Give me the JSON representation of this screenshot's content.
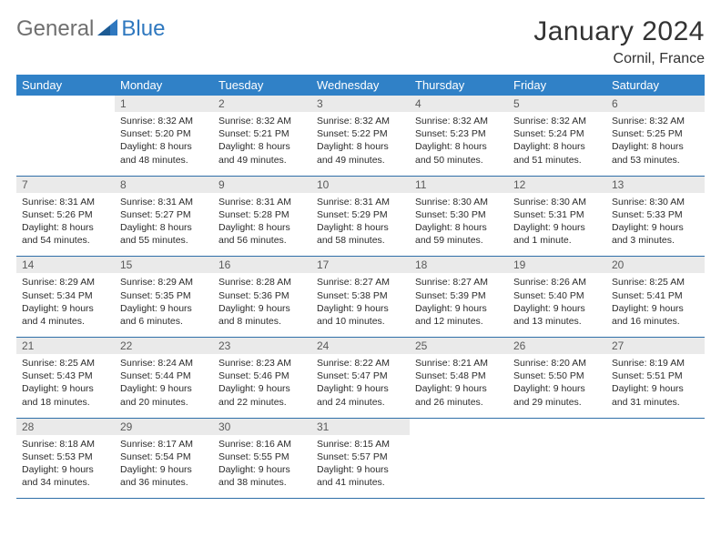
{
  "logo": {
    "general": "General",
    "blue": "Blue"
  },
  "header": {
    "month": "January 2024",
    "location": "Cornil, France"
  },
  "colors": {
    "header_bg": "#3081c7",
    "header_text": "#ffffff",
    "daynum_bg": "#eaeaea",
    "daynum_text": "#5a5a5a",
    "rule": "#2f6fa8",
    "body_text": "#2b2b2b",
    "logo_gray": "#6f6f6f",
    "logo_blue": "#2f78bf"
  },
  "weekdays": [
    "Sunday",
    "Monday",
    "Tuesday",
    "Wednesday",
    "Thursday",
    "Friday",
    "Saturday"
  ],
  "weeks": [
    {
      "nums": [
        "",
        "1",
        "2",
        "3",
        "4",
        "5",
        "6"
      ],
      "cells": [
        {
          "empty": true
        },
        {
          "sunrise": "Sunrise: 8:32 AM",
          "sunset": "Sunset: 5:20 PM",
          "day1": "Daylight: 8 hours",
          "day2": "and 48 minutes."
        },
        {
          "sunrise": "Sunrise: 8:32 AM",
          "sunset": "Sunset: 5:21 PM",
          "day1": "Daylight: 8 hours",
          "day2": "and 49 minutes."
        },
        {
          "sunrise": "Sunrise: 8:32 AM",
          "sunset": "Sunset: 5:22 PM",
          "day1": "Daylight: 8 hours",
          "day2": "and 49 minutes."
        },
        {
          "sunrise": "Sunrise: 8:32 AM",
          "sunset": "Sunset: 5:23 PM",
          "day1": "Daylight: 8 hours",
          "day2": "and 50 minutes."
        },
        {
          "sunrise": "Sunrise: 8:32 AM",
          "sunset": "Sunset: 5:24 PM",
          "day1": "Daylight: 8 hours",
          "day2": "and 51 minutes."
        },
        {
          "sunrise": "Sunrise: 8:32 AM",
          "sunset": "Sunset: 5:25 PM",
          "day1": "Daylight: 8 hours",
          "day2": "and 53 minutes."
        }
      ]
    },
    {
      "nums": [
        "7",
        "8",
        "9",
        "10",
        "11",
        "12",
        "13"
      ],
      "cells": [
        {
          "sunrise": "Sunrise: 8:31 AM",
          "sunset": "Sunset: 5:26 PM",
          "day1": "Daylight: 8 hours",
          "day2": "and 54 minutes."
        },
        {
          "sunrise": "Sunrise: 8:31 AM",
          "sunset": "Sunset: 5:27 PM",
          "day1": "Daylight: 8 hours",
          "day2": "and 55 minutes."
        },
        {
          "sunrise": "Sunrise: 8:31 AM",
          "sunset": "Sunset: 5:28 PM",
          "day1": "Daylight: 8 hours",
          "day2": "and 56 minutes."
        },
        {
          "sunrise": "Sunrise: 8:31 AM",
          "sunset": "Sunset: 5:29 PM",
          "day1": "Daylight: 8 hours",
          "day2": "and 58 minutes."
        },
        {
          "sunrise": "Sunrise: 8:30 AM",
          "sunset": "Sunset: 5:30 PM",
          "day1": "Daylight: 8 hours",
          "day2": "and 59 minutes."
        },
        {
          "sunrise": "Sunrise: 8:30 AM",
          "sunset": "Sunset: 5:31 PM",
          "day1": "Daylight: 9 hours",
          "day2": "and 1 minute."
        },
        {
          "sunrise": "Sunrise: 8:30 AM",
          "sunset": "Sunset: 5:33 PM",
          "day1": "Daylight: 9 hours",
          "day2": "and 3 minutes."
        }
      ]
    },
    {
      "nums": [
        "14",
        "15",
        "16",
        "17",
        "18",
        "19",
        "20"
      ],
      "cells": [
        {
          "sunrise": "Sunrise: 8:29 AM",
          "sunset": "Sunset: 5:34 PM",
          "day1": "Daylight: 9 hours",
          "day2": "and 4 minutes."
        },
        {
          "sunrise": "Sunrise: 8:29 AM",
          "sunset": "Sunset: 5:35 PM",
          "day1": "Daylight: 9 hours",
          "day2": "and 6 minutes."
        },
        {
          "sunrise": "Sunrise: 8:28 AM",
          "sunset": "Sunset: 5:36 PM",
          "day1": "Daylight: 9 hours",
          "day2": "and 8 minutes."
        },
        {
          "sunrise": "Sunrise: 8:27 AM",
          "sunset": "Sunset: 5:38 PM",
          "day1": "Daylight: 9 hours",
          "day2": "and 10 minutes."
        },
        {
          "sunrise": "Sunrise: 8:27 AM",
          "sunset": "Sunset: 5:39 PM",
          "day1": "Daylight: 9 hours",
          "day2": "and 12 minutes."
        },
        {
          "sunrise": "Sunrise: 8:26 AM",
          "sunset": "Sunset: 5:40 PM",
          "day1": "Daylight: 9 hours",
          "day2": "and 13 minutes."
        },
        {
          "sunrise": "Sunrise: 8:25 AM",
          "sunset": "Sunset: 5:41 PM",
          "day1": "Daylight: 9 hours",
          "day2": "and 16 minutes."
        }
      ]
    },
    {
      "nums": [
        "21",
        "22",
        "23",
        "24",
        "25",
        "26",
        "27"
      ],
      "cells": [
        {
          "sunrise": "Sunrise: 8:25 AM",
          "sunset": "Sunset: 5:43 PM",
          "day1": "Daylight: 9 hours",
          "day2": "and 18 minutes."
        },
        {
          "sunrise": "Sunrise: 8:24 AM",
          "sunset": "Sunset: 5:44 PM",
          "day1": "Daylight: 9 hours",
          "day2": "and 20 minutes."
        },
        {
          "sunrise": "Sunrise: 8:23 AM",
          "sunset": "Sunset: 5:46 PM",
          "day1": "Daylight: 9 hours",
          "day2": "and 22 minutes."
        },
        {
          "sunrise": "Sunrise: 8:22 AM",
          "sunset": "Sunset: 5:47 PM",
          "day1": "Daylight: 9 hours",
          "day2": "and 24 minutes."
        },
        {
          "sunrise": "Sunrise: 8:21 AM",
          "sunset": "Sunset: 5:48 PM",
          "day1": "Daylight: 9 hours",
          "day2": "and 26 minutes."
        },
        {
          "sunrise": "Sunrise: 8:20 AM",
          "sunset": "Sunset: 5:50 PM",
          "day1": "Daylight: 9 hours",
          "day2": "and 29 minutes."
        },
        {
          "sunrise": "Sunrise: 8:19 AM",
          "sunset": "Sunset: 5:51 PM",
          "day1": "Daylight: 9 hours",
          "day2": "and 31 minutes."
        }
      ]
    },
    {
      "nums": [
        "28",
        "29",
        "30",
        "31",
        "",
        "",
        ""
      ],
      "cells": [
        {
          "sunrise": "Sunrise: 8:18 AM",
          "sunset": "Sunset: 5:53 PM",
          "day1": "Daylight: 9 hours",
          "day2": "and 34 minutes."
        },
        {
          "sunrise": "Sunrise: 8:17 AM",
          "sunset": "Sunset: 5:54 PM",
          "day1": "Daylight: 9 hours",
          "day2": "and 36 minutes."
        },
        {
          "sunrise": "Sunrise: 8:16 AM",
          "sunset": "Sunset: 5:55 PM",
          "day1": "Daylight: 9 hours",
          "day2": "and 38 minutes."
        },
        {
          "sunrise": "Sunrise: 8:15 AM",
          "sunset": "Sunset: 5:57 PM",
          "day1": "Daylight: 9 hours",
          "day2": "and 41 minutes."
        },
        {
          "empty": true
        },
        {
          "empty": true
        },
        {
          "empty": true
        }
      ]
    }
  ]
}
